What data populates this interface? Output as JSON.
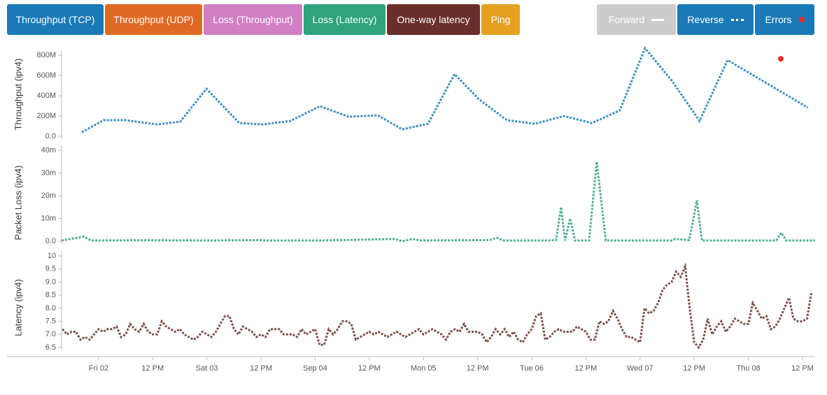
{
  "buttons": [
    {
      "label": "Throughput (TCP)",
      "color": "#1a7ab7"
    },
    {
      "label": "Throughput (UDP)",
      "color": "#e06a25"
    },
    {
      "label": "Loss (Throughput)",
      "color": "#d17fc3"
    },
    {
      "label": "Loss (Latency)",
      "color": "#2fa37b"
    },
    {
      "label": "One-way latency",
      "color": "#6b2f2b"
    },
    {
      "label": "Ping",
      "color": "#e6a020"
    }
  ],
  "toggles": [
    {
      "label": "Forward",
      "color": "#cccccc"
    },
    {
      "label": "Reverse",
      "color": "#1a7ab7"
    },
    {
      "label": "Errors",
      "color": "#1a7ab7"
    }
  ],
  "chart_data": [
    {
      "type": "line",
      "ylabel": "Throughput (ipv4)",
      "xlim": [
        15.8,
        182.8
      ],
      "ylim": [
        0,
        800000000
      ],
      "yticks": [
        {
          "value": 0,
          "label": "0.0"
        },
        {
          "value": 200000000,
          "label": "200M"
        },
        {
          "value": 400000000,
          "label": "400M"
        },
        {
          "value": 600000000,
          "label": "600M"
        },
        {
          "value": 800000000,
          "label": "800M"
        }
      ],
      "series": [
        {
          "name": "Reverse",
          "color": "#3a8fc0",
          "x": [
            20.3,
            25.1,
            30.0,
            37.0,
            42.1,
            47.9,
            55.2,
            60.3,
            66.5,
            73.1,
            79.4,
            85.9,
            91.3,
            97.0,
            102.9,
            108.3,
            114.5,
            120.7,
            127.1,
            133.3,
            139.5,
            145.1,
            151.0,
            157.2,
            163.4,
            181.2
          ],
          "values": [
            41000000,
            159000000,
            159000000,
            117000000,
            145000000,
            469000000,
            131000000,
            117000000,
            152000000,
            297000000,
            193000000,
            207000000,
            69000000,
            124000000,
            614000000,
            366000000,
            159000000,
            124000000,
            200000000,
            131000000,
            255000000,
            869000000,
            552000000,
            152000000,
            752000000,
            283000000
          ]
        }
      ],
      "errors": {
        "color": "#ee2a2a",
        "x": [
          175.2
        ],
        "values": [
          765000000
        ]
      }
    },
    {
      "type": "line",
      "ylabel": "Packet Loss (ipv4)",
      "xlim": [
        15.8,
        182.8
      ],
      "ylim": [
        0,
        0.04
      ],
      "yticks": [
        {
          "value": 0,
          "label": "0.0"
        },
        {
          "value": 0.01,
          "label": "10m"
        },
        {
          "value": 0.02,
          "label": "20m"
        },
        {
          "value": 0.03,
          "label": "30m"
        },
        {
          "value": 0.04,
          "label": "40m"
        }
      ],
      "series": [
        {
          "name": "Reverse",
          "color": "#4dae8d",
          "x": [
            15.8,
            20.7,
            22.3,
            33.1,
            48.7,
            59.5,
            61.1,
            73.5,
            89.7,
            91.3,
            93.6,
            95.2,
            110.7,
            112.2,
            113.8,
            123.1,
            125.4,
            126.5,
            127.4,
            128.5,
            129.6,
            132.7,
            134.4,
            136.4,
            151.0,
            151.8,
            154.9,
            156.6,
            157.7,
            174.2,
            175.3,
            176.4,
            182.8
          ],
          "values": [
            0.0003,
            0.002,
            0.0003,
            0.0004,
            0.0003,
            0.0005,
            0.0003,
            0.0003,
            0.001,
            0,
            0.001,
            0.0003,
            0.0005,
            0.0015,
            0.0003,
            0.0003,
            0.0005,
            0.015,
            0.0003,
            0.01,
            0.0003,
            0.0003,
            0.035,
            0.0003,
            0.0003,
            0.001,
            0.0005,
            0.018,
            0.0003,
            0.0003,
            0.0037,
            0.0003,
            0.0003
          ]
        }
      ]
    },
    {
      "type": "line",
      "ylabel": "Latency (ipv4)",
      "xlim": [
        15.8,
        182.8
      ],
      "ylim": [
        6.5,
        10
      ],
      "yticks": [
        6.5,
        {
          "value": 7,
          "label": "7.0"
        },
        7.5,
        {
          "value": 8,
          "label": "8.0"
        },
        8.5,
        {
          "value": 9,
          "label": "9.0"
        },
        9.5,
        10
      ],
      "xticks": [
        {
          "value": 24,
          "label": "Fri 02"
        },
        {
          "value": 36,
          "label": "12 PM"
        },
        {
          "value": 48,
          "label": "Sat 03"
        },
        {
          "value": 60,
          "label": "12 PM"
        },
        {
          "value": 72,
          "label": "Sep 04"
        },
        {
          "value": 84,
          "label": "12 PM"
        },
        {
          "value": 96,
          "label": "Mon 05"
        },
        {
          "value": 108,
          "label": "12 PM"
        },
        {
          "value": 120,
          "label": "Tue 06"
        },
        {
          "value": 132,
          "label": "12 PM"
        },
        {
          "value": 144,
          "label": "Wed 07"
        },
        {
          "value": 156,
          "label": "12 PM"
        },
        {
          "value": 168,
          "label": "Thu 08"
        },
        {
          "value": 180,
          "label": "12 PM"
        }
      ],
      "series": [
        {
          "name": "Reverse",
          "color": "#7d4f48",
          "x": [
            16,
            17,
            18,
            19,
            20,
            21,
            22,
            23,
            24,
            25,
            26,
            27,
            28,
            29,
            30,
            31,
            32,
            33,
            34,
            35,
            36,
            37,
            38,
            39,
            40,
            41,
            42,
            43,
            44,
            45,
            46,
            47,
            48,
            49,
            50,
            51,
            52,
            53,
            54,
            55,
            56,
            57,
            58,
            59,
            60,
            61,
            62,
            63,
            64,
            65,
            66,
            67,
            68,
            69,
            70,
            71,
            72,
            73,
            74,
            75,
            76,
            77,
            78,
            79,
            80,
            81,
            82,
            83,
            84,
            85,
            86,
            87,
            88,
            89,
            90,
            91,
            92,
            93,
            94,
            95,
            96,
            97,
            98,
            99,
            100,
            101,
            102,
            103,
            104,
            105,
            106,
            107,
            108,
            109,
            110,
            111,
            112,
            113,
            114,
            115,
            116,
            117,
            118,
            119,
            120,
            121,
            122,
            123,
            124,
            125,
            126,
            127,
            128,
            129,
            130,
            131,
            132,
            133,
            134,
            135,
            136,
            137,
            138,
            139,
            140,
            141,
            142,
            143,
            144,
            145,
            146,
            147,
            148,
            149,
            150,
            151,
            152,
            153,
            154,
            155,
            156,
            157,
            158,
            159,
            160,
            161,
            162,
            163,
            164,
            165,
            166,
            167,
            168,
            169,
            170,
            171,
            172,
            173,
            174,
            175,
            176,
            177,
            178,
            179,
            180,
            181,
            182
          ],
          "values": [
            7.2,
            7.0,
            7.1,
            7.1,
            6.8,
            6.9,
            6.8,
            7.0,
            7.2,
            7.1,
            7.2,
            7.2,
            7.3,
            6.9,
            7.0,
            7.4,
            7.2,
            7.1,
            7.4,
            7.1,
            7.0,
            7.0,
            7.5,
            7.3,
            7.2,
            7.1,
            7.2,
            7.0,
            6.9,
            6.8,
            6.9,
            7.1,
            7.0,
            6.9,
            7.1,
            7.4,
            7.7,
            7.7,
            7.2,
            7.0,
            7.3,
            7.2,
            7.1,
            6.9,
            7.0,
            6.9,
            7.2,
            7.2,
            7.2,
            7.0,
            7.0,
            7.0,
            6.9,
            7.2,
            7.0,
            7.1,
            7.2,
            6.6,
            6.6,
            7.2,
            7.0,
            7.2,
            7.5,
            7.5,
            7.4,
            6.8,
            6.9,
            7.0,
            7.1,
            7.0,
            7.1,
            7.0,
            6.9,
            7.0,
            7.1,
            7.0,
            6.9,
            7.0,
            7.1,
            7.2,
            7.0,
            7.1,
            7.2,
            7.1,
            7.0,
            6.8,
            7.1,
            7.2,
            7.1,
            7.4,
            7.1,
            7.1,
            7.1,
            7.0,
            6.7,
            6.9,
            7.2,
            7.0,
            7.2,
            6.9,
            7.1,
            6.8,
            6.7,
            7.0,
            7.2,
            7.7,
            7.8,
            6.8,
            6.9,
            7.1,
            7.2,
            7.1,
            7.1,
            7.1,
            7.3,
            7.2,
            7.1,
            6.8,
            6.8,
            7.5,
            7.4,
            7.5,
            7.9,
            7.6,
            7.2,
            6.9,
            6.9,
            6.8,
            6.7,
            8.0,
            7.8,
            7.9,
            8.2,
            8.7,
            8.9,
            9.0,
            9.4,
            9.2,
            9.6,
            8.0,
            6.7,
            6.5,
            6.8,
            7.6,
            7.0,
            7.3,
            7.5,
            7.1,
            7.3,
            7.6,
            7.5,
            7.4,
            7.4,
            8.2,
            7.9,
            7.6,
            7.7,
            7.2,
            7.3,
            7.6,
            8.0,
            8.4,
            7.6,
            7.5,
            7.5,
            7.6,
            8.6
          ]
        }
      ]
    }
  ]
}
